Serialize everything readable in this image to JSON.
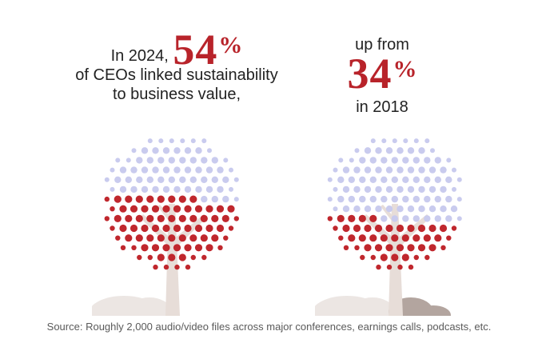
{
  "panels": [
    {
      "lead": "In 2024,",
      "big_number": "54",
      "percent_sign": "%",
      "rest_line1": "of CEOs linked sustainability",
      "rest_line2": "to business value,"
    },
    {
      "lead": "up from",
      "big_number": "34",
      "percent_sign": "%",
      "rest_line1": "in 2018"
    }
  ],
  "source": "Source: Roughly 2,000 audio/video files across major conferences, earnings calls, podcasts, etc.",
  "colors": {
    "highlight": "#b8232a",
    "dot_red": "#c0272d",
    "dot_lavender": "#c9cbee",
    "trunk": "#e7ddd8",
    "ground": "#ece6e3",
    "ground_dark": "#b3a59f",
    "text": "#222222"
  },
  "chart_data": {
    "type": "pictogram",
    "categories": [
      "2024",
      "2018"
    ],
    "values": [
      54,
      34
    ],
    "units": "percent of CEOs",
    "title": "",
    "xlabel": "",
    "ylabel": ""
  }
}
